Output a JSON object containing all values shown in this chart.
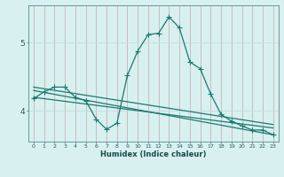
{
  "xlabel": "Humidex (Indice chaleur)",
  "bg_color": "#d8f0f0",
  "grid_color": "#c0dede",
  "line_color": "#1a7a6e",
  "x_ticks": [
    0,
    1,
    2,
    3,
    4,
    5,
    6,
    7,
    8,
    9,
    10,
    11,
    12,
    13,
    14,
    15,
    16,
    17,
    18,
    19,
    20,
    21,
    22,
    23
  ],
  "y_ticks": [
    4,
    5
  ],
  "ylim": [
    3.55,
    5.55
  ],
  "xlim": [
    -0.5,
    23.5
  ],
  "curve1_x": [
    0,
    1,
    2,
    3,
    4,
    5,
    6,
    7,
    8,
    9,
    10,
    11,
    12,
    13,
    14,
    15,
    16,
    17,
    18,
    19,
    20,
    21,
    22,
    23
  ],
  "curve1_y": [
    4.18,
    4.28,
    4.35,
    4.35,
    4.2,
    4.15,
    3.88,
    3.73,
    3.82,
    4.52,
    4.88,
    5.12,
    5.14,
    5.38,
    5.22,
    4.72,
    4.62,
    4.25,
    3.95,
    3.85,
    3.78,
    3.72,
    3.72,
    3.65
  ],
  "curve2_x": [
    0,
    23
  ],
  "curve2_y": [
    4.3,
    3.65
  ],
  "curve3_x": [
    0,
    23
  ],
  "curve3_y": [
    4.2,
    3.75
  ],
  "curve4_x": [
    0,
    23
  ],
  "curve4_y": [
    4.35,
    3.8
  ]
}
